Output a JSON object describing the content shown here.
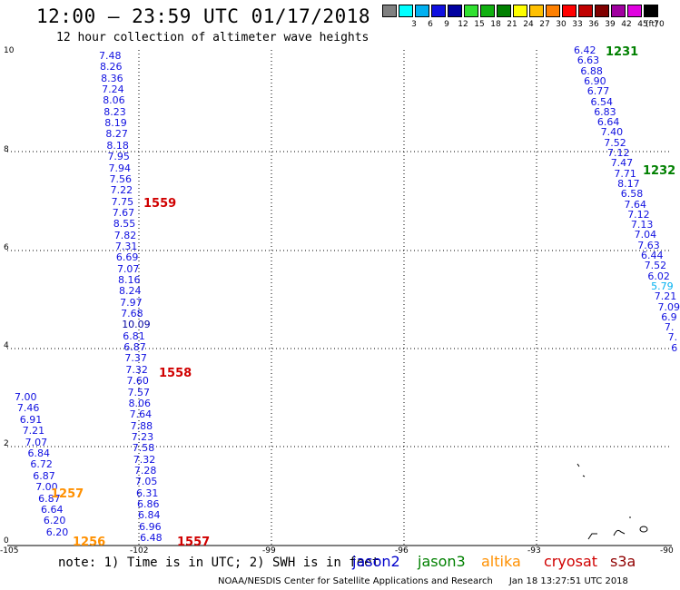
{
  "title": "12:00 — 23:59 UTC 01/17/2018",
  "subtitle": "12 hour collection of altimeter wave heights",
  "legend": {
    "unit": "(ft)",
    "bins": [
      {
        "label": "",
        "color": "#808080"
      },
      {
        "label": "3",
        "color": "#00ffff"
      },
      {
        "label": "6",
        "color": "#00b0f0"
      },
      {
        "label": "9",
        "color": "#1010e0"
      },
      {
        "label": "12",
        "color": "#0000a0"
      },
      {
        "label": "15",
        "color": "#30e030"
      },
      {
        "label": "18",
        "color": "#10b010"
      },
      {
        "label": "21",
        "color": "#008000"
      },
      {
        "label": "24",
        "color": "#ffff00"
      },
      {
        "label": "27",
        "color": "#ffc000"
      },
      {
        "label": "30",
        "color": "#ff8000"
      },
      {
        "label": "33",
        "color": "#ff0000"
      },
      {
        "label": "36",
        "color": "#c00000"
      },
      {
        "label": "39",
        "color": "#800000"
      },
      {
        "label": "42",
        "color": "#a000a0"
      },
      {
        "label": "45",
        "color": "#e000e0"
      },
      {
        "label": "70",
        "color": "#000000"
      }
    ]
  },
  "map": {
    "lon_ticks": [
      "-105",
      "-102",
      "-99",
      "-96",
      "-93",
      "-90"
    ],
    "lat_ticks": [
      "0",
      "2",
      "4",
      "6",
      "8",
      "10"
    ],
    "tracks": [
      {
        "values": [
          "7.48",
          "8.26",
          "8.36",
          "7.24",
          "8.06",
          "8.23",
          "8.19",
          "8.27",
          "8.18",
          "7.95",
          "7.94",
          "7.56",
          "7.22",
          "7.75",
          "7.67",
          "8.55",
          "7.82",
          "7.31",
          "6.69",
          "7.07",
          "8.16",
          "8.24",
          "7.97",
          "7.68",
          "10.09",
          "6.81",
          "6.87",
          "7.37",
          "7.32",
          "7.60",
          "7.57",
          "8.06",
          "7.64",
          "7.88",
          "7.23",
          "7.58",
          "7.32",
          "7.28",
          "7.05",
          "6.31",
          "6.86",
          "6.84",
          "6.96",
          "6.48"
        ]
      },
      {
        "values": [
          "7.00",
          "7.46",
          "6.91",
          "7.21",
          "7.07",
          "6.84",
          "6.72",
          "6.87",
          "7.00",
          "6.87",
          "6.64",
          "6.20",
          "6.20"
        ]
      },
      {
        "values": [
          "6.42",
          "6.63",
          "6.88",
          "6.90",
          "6.77",
          "6.54",
          "6.83",
          "6.64",
          "7.40",
          "7.52",
          "7.12",
          "7.47",
          "7.71",
          "8.17",
          "6.58",
          "7.64",
          "7.12",
          "7.13",
          "7.04",
          "7.63",
          "6.44",
          "7.52",
          "6.02",
          "5.79",
          "7.21",
          "7.09",
          "6.9",
          "7.",
          "7.",
          "6"
        ]
      }
    ],
    "passes": [
      {
        "label": "1559",
        "color": "#d00000"
      },
      {
        "label": "1558",
        "color": "#d00000"
      },
      {
        "label": "1557",
        "color": "#d00000"
      },
      {
        "label": "1257",
        "color": "#ff9000"
      },
      {
        "label": "1256",
        "color": "#ff9000"
      },
      {
        "label": "1231",
        "color": "#008000"
      },
      {
        "label": "1232",
        "color": "#008000"
      }
    ]
  },
  "footer": {
    "note": "note: 1) Time is in UTC; 2) SWH is in feet",
    "satellites": [
      {
        "name": "jason2",
        "color": "#0000cc"
      },
      {
        "name": "jason3",
        "color": "#008000"
      },
      {
        "name": "altika",
        "color": "#ff9000"
      },
      {
        "name": "cryosat",
        "color": "#d00000"
      },
      {
        "name": "s3a",
        "color": "#900000"
      }
    ],
    "credit": "NOAA/NESDIS Center for Satellite Applications and Research",
    "timestamp": "Jan 18 13:27:51 UTC 2018"
  }
}
